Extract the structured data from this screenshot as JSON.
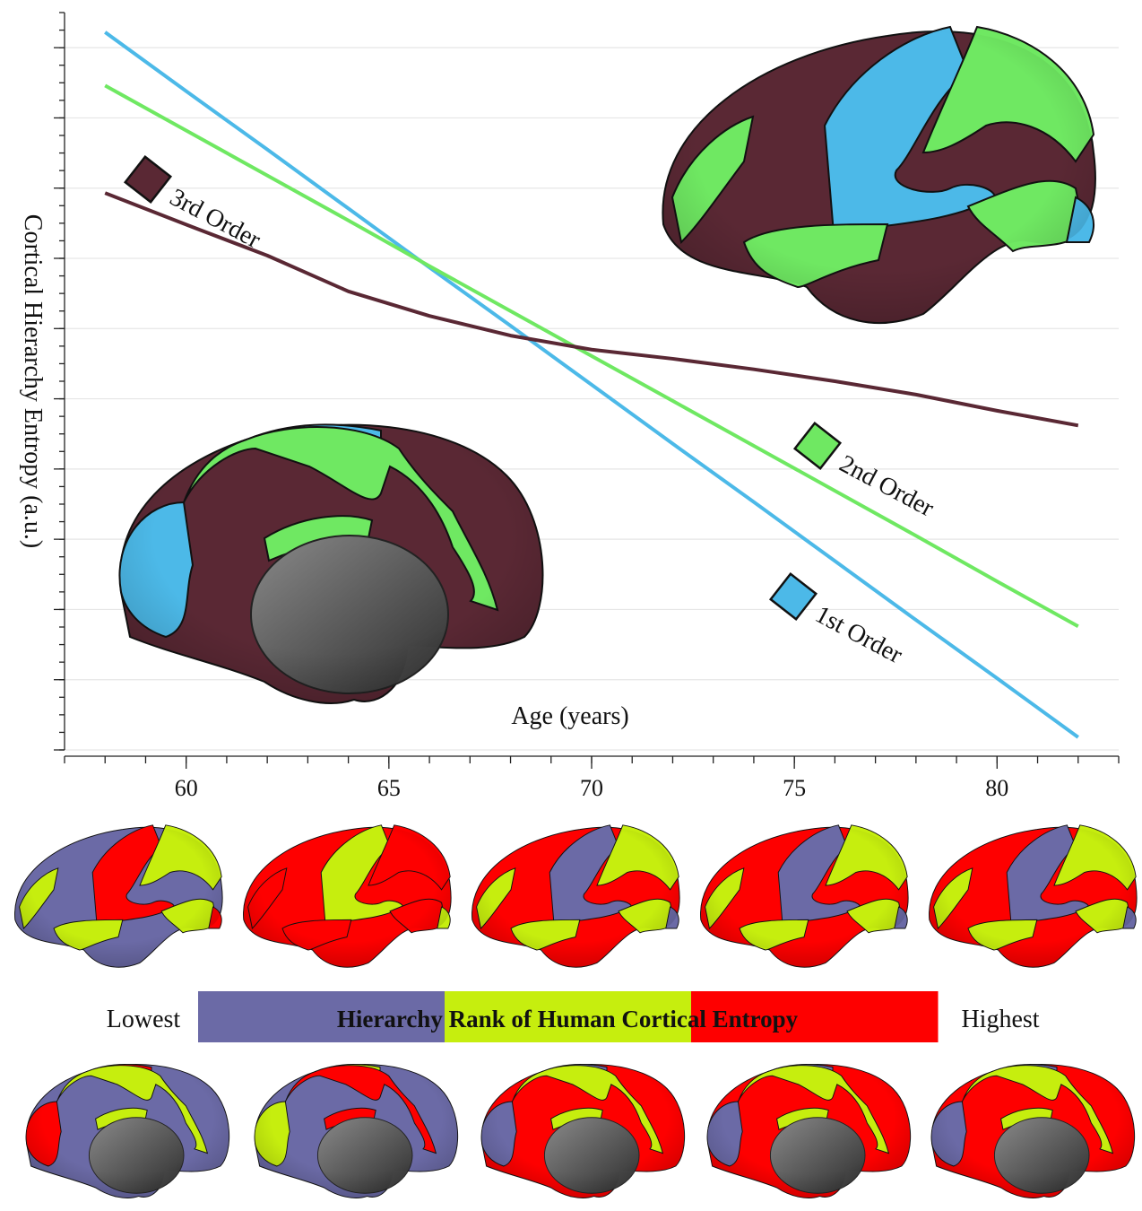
{
  "chart_data": {
    "type": "line",
    "x_label": "Age (years)",
    "y_label": "Cortical Hierarchy Entropy (a.u.)",
    "x": [
      58,
      60,
      62,
      64,
      66,
      68,
      70,
      72,
      74,
      76,
      78,
      80,
      82
    ],
    "series": [
      {
        "name": "1st Order",
        "color": "#4cb9e8",
        "values": [
          10.22,
          9.38,
          8.55,
          7.71,
          6.87,
          6.04,
          5.2,
          4.36,
          3.53,
          2.69,
          1.85,
          1.02,
          0.18
        ]
      },
      {
        "name": "2nd Order",
        "color": "#6fe862",
        "values": [
          9.46,
          8.82,
          8.18,
          7.54,
          6.89,
          6.25,
          5.61,
          4.97,
          4.33,
          3.69,
          3.05,
          2.4,
          1.76
        ]
      },
      {
        "name": "3rd Order",
        "color": "#5a2834",
        "values": [
          7.93,
          7.48,
          7.04,
          6.53,
          6.18,
          5.9,
          5.7,
          5.57,
          5.42,
          5.25,
          5.06,
          4.83,
          4.62
        ]
      }
    ],
    "xlim": [
      57,
      83
    ],
    "xticks": [
      60,
      65,
      70,
      75,
      80
    ],
    "ylim": [
      0,
      10.5
    ],
    "yticks": [
      0,
      1,
      2,
      3,
      4,
      5,
      6,
      7,
      8,
      9,
      10
    ],
    "ytick_labels_shown": false,
    "grid": true,
    "colorbar": {
      "title": "Hierarchy Rank of Human Cortical Entropy",
      "left_label": "Lowest",
      "right_label": "Highest",
      "colors": [
        "#6b6aa6",
        "#c6ee0e",
        "#fe0000"
      ]
    }
  }
}
